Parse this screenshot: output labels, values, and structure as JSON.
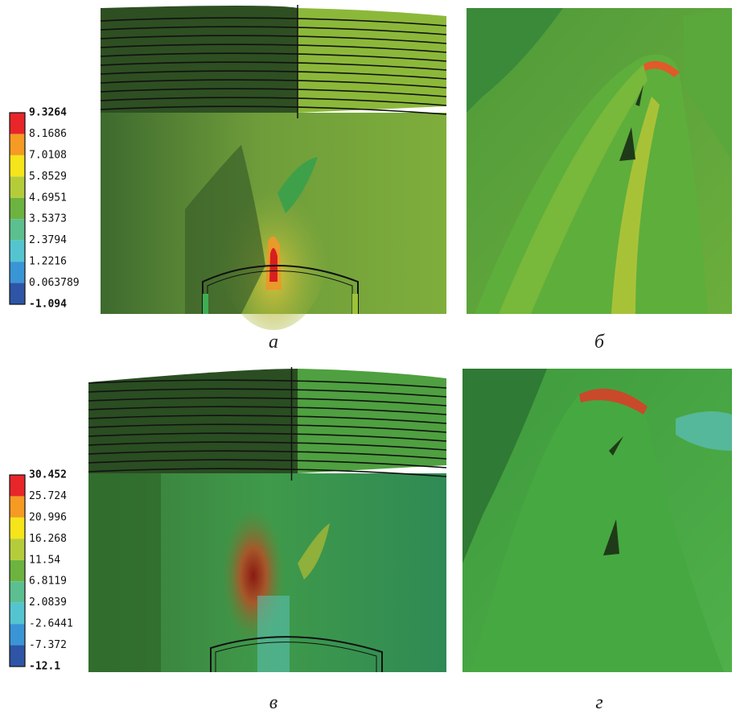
{
  "panels": [
    {
      "caption": "а",
      "legend": [
        "9.3264",
        "8.1686",
        "7.0108",
        "5.8529",
        "4.6951",
        "3.5373",
        "2.3794",
        "1.2216",
        "0.063789",
        "-1.094"
      ]
    },
    {
      "caption": "б"
    },
    {
      "caption": "в",
      "legend": [
        "30.452",
        "25.724",
        "20.996",
        "16.268",
        "11.54",
        "6.8119",
        "2.0839",
        "-2.6441",
        "-7.372",
        "-12.1"
      ]
    },
    {
      "caption": "г"
    }
  ]
}
